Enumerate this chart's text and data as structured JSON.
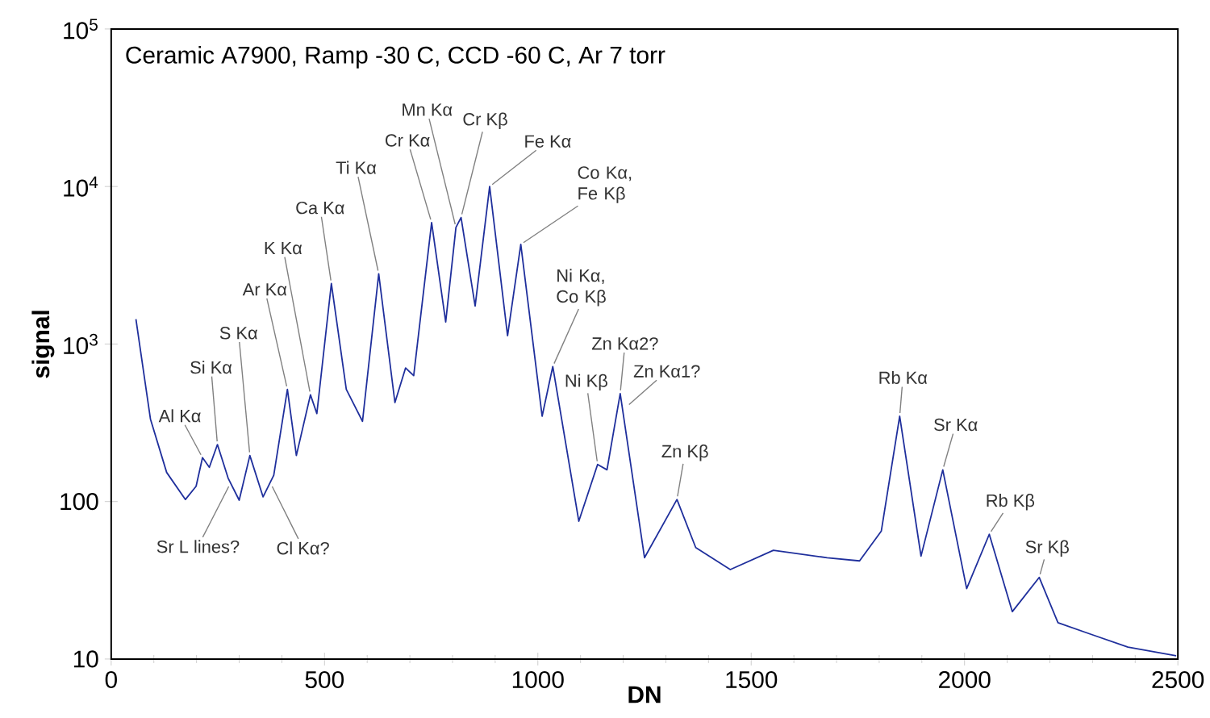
{
  "chart_data": {
    "type": "line",
    "title": "Ceramic A7900, Ramp -30 C, CCD -60 C, Ar 7 torr",
    "xlabel": "DN",
    "ylabel": "signal",
    "log": "y",
    "grid": false,
    "marker": "none",
    "line_style": "solid",
    "xlim": [
      0,
      2500
    ],
    "xticks": [
      0,
      500,
      1000,
      1500,
      2000,
      2500
    ],
    "ylim": [
      10,
      100000
    ],
    "yticks": [
      10,
      100,
      {
        "value": 1000,
        "label": "10$^{3}$"
      },
      {
        "value": 10000,
        "label": "10$^{4}$"
      },
      {
        "value": 100000,
        "label": "10$^{5}$"
      }
    ],
    "series": [
      {
        "color": "#1f2f9c",
        "x": [
          58,
          92,
          130,
          174,
          199,
          214,
          230,
          249,
          274,
          300,
          325,
          356,
          381,
          413,
          434,
          467,
          482,
          516,
          551,
          589,
          627,
          665,
          690,
          709,
          751,
          784,
          808,
          820,
          853,
          887,
          929,
          960,
          1010,
          1035,
          1096,
          1140,
          1162,
          1193,
          1250,
          1326,
          1370,
          1451,
          1552,
          1678,
          1754,
          1805,
          1848,
          1898,
          1949,
          2005,
          2058,
          2112,
          2175,
          2219,
          2295,
          2383,
          2496
        ],
        "values": [
          1440,
          334,
          153,
          103,
          125,
          190,
          165,
          230,
          141,
          102,
          196,
          107,
          147,
          515,
          196,
          476,
          362,
          2420,
          515,
          323,
          2790,
          425,
          705,
          630,
          5900,
          1380,
          5500,
          6360,
          1740,
          10000,
          1130,
          4290,
          348,
          720,
          75,
          172,
          159,
          485,
          44,
          103,
          51,
          37,
          49,
          44,
          42,
          65,
          348,
          45,
          159,
          28,
          62,
          20,
          33,
          17,
          14.4,
          11.9,
          10.5
        ]
      }
    ],
    "annotations": [
      {
        "text": "Al Kα",
        "x": 214,
        "y": 190
      },
      {
        "text": "Si Kα",
        "x": 249,
        "y": 230
      },
      {
        "text": "S Kα",
        "x": 325,
        "y": 196
      },
      {
        "text": "Ar Kα",
        "x": 413,
        "y": 515
      },
      {
        "text": "K Kα",
        "x": 467,
        "y": 476
      },
      {
        "text": "Ca Kα",
        "x": 516,
        "y": 2420
      },
      {
        "text": "Ti Kα",
        "x": 627,
        "y": 2790
      },
      {
        "text": "Cr Kα",
        "x": 751,
        "y": 5900
      },
      {
        "text": "Mn Kα",
        "x": 808,
        "y": 5500
      },
      {
        "text": "Cr Kβ",
        "x": 820,
        "y": 6360
      },
      {
        "text": "Fe Kα",
        "x": 887,
        "y": 10000
      },
      {
        "text": "Co Kα, Fe Kβ",
        "x": 960,
        "y": 4290
      },
      {
        "text": "Ni Kα, Co Kβ",
        "x": 1035,
        "y": 720
      },
      {
        "text": "Zn Kα2?",
        "x": 1193,
        "y": 485
      },
      {
        "text": "Ni Kβ",
        "x": 1140,
        "y": 172
      },
      {
        "text": "Zn Kα1?",
        "x": 1208,
        "y": 400
      },
      {
        "text": "Zn Kβ",
        "x": 1326,
        "y": 103
      },
      {
        "text": "Rb Kα",
        "x": 1848,
        "y": 348
      },
      {
        "text": "Sr Kα",
        "x": 1949,
        "y": 159
      },
      {
        "text": "Rb Kβ",
        "x": 2058,
        "y": 62
      },
      {
        "text": "Sr Kβ",
        "x": 2175,
        "y": 33
      },
      {
        "text": "Sr L lines?",
        "x": 279,
        "y": 130
      },
      {
        "text": "Cl Kα?",
        "x": 374,
        "y": 130
      }
    ]
  }
}
